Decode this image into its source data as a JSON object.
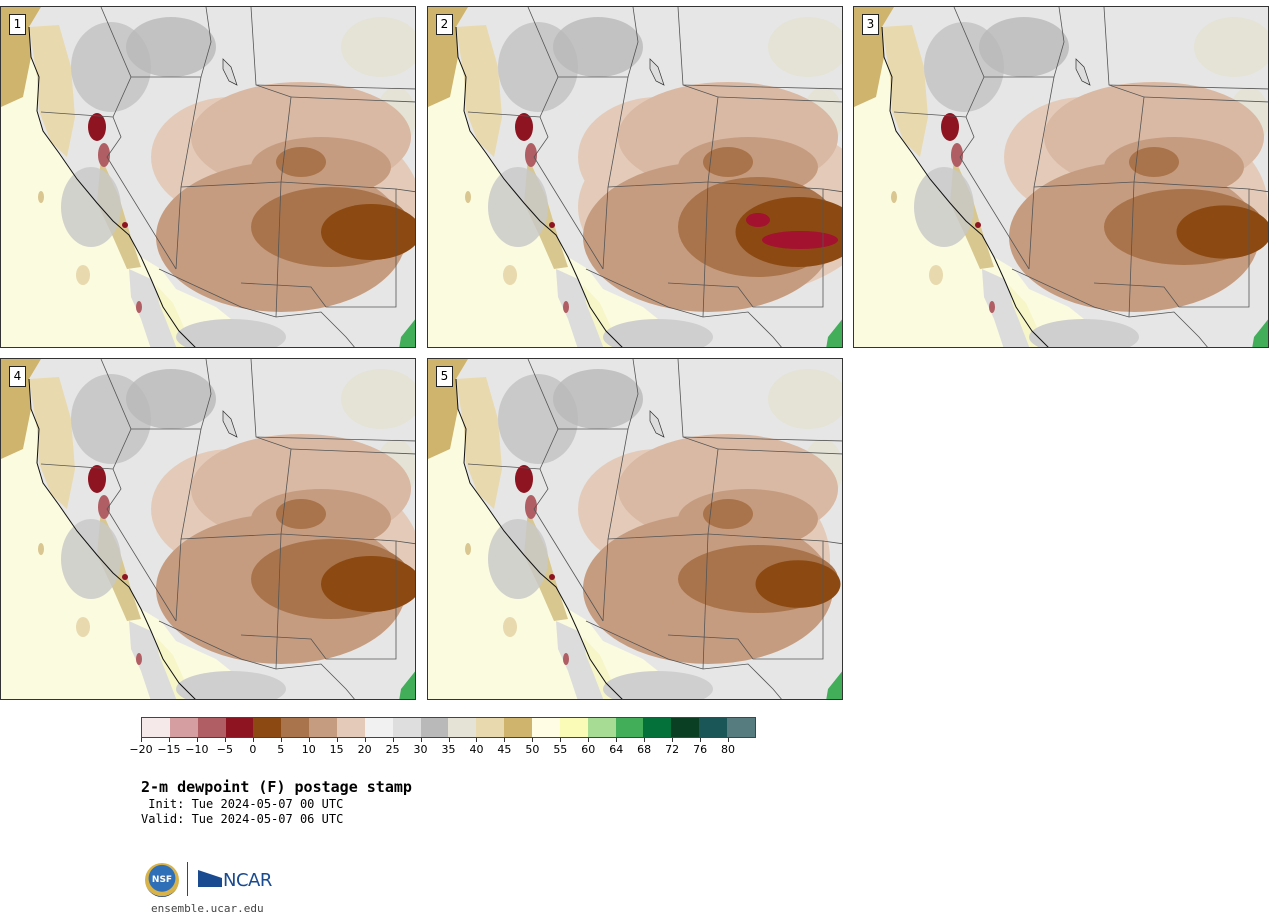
{
  "stamps": [
    {
      "number": "1",
      "dark": 1.0
    },
    {
      "number": "2",
      "dark": 1.25
    },
    {
      "number": "3",
      "dark": 0.95
    },
    {
      "number": "4",
      "dark": 1.0
    },
    {
      "number": "5",
      "dark": 0.85
    }
  ],
  "colorbar": {
    "colors": [
      "#f6e9ea",
      "#d59fa2",
      "#b05e63",
      "#8e1421",
      "#8c4a12",
      "#a9744b",
      "#c69c80",
      "#e4cbb9",
      "#f1f1f1",
      "#dedede",
      "#b9b9b9",
      "#e4e3d6",
      "#e8d9ae",
      "#cfb46e",
      "#fffde3",
      "#f9fbb6",
      "#a6dc93",
      "#42ae5a",
      "#04703a",
      "#0a3f24",
      "#1a5557",
      "#567c80"
    ],
    "tick_labels": [
      "−20",
      "−15",
      "−10",
      "−5",
      "0",
      "5",
      "10",
      "15",
      "20",
      "25",
      "30",
      "35",
      "40",
      "45",
      "50",
      "55",
      "60",
      "64",
      "68",
      "72",
      "76",
      "80"
    ]
  },
  "title": "2-m dewpoint (F) postage stamp",
  "init": " Init: Tue 2024-05-07 00 UTC",
  "valid": "Valid: Tue 2024-05-07 06 UTC",
  "logos": {
    "nsf": "NSF",
    "ncar": "NCAR"
  },
  "site": "ensemble.ucar.edu"
}
